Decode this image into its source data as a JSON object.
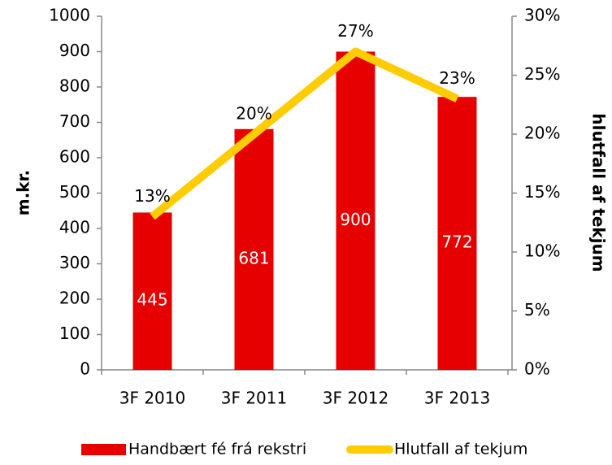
{
  "chart_data": {
    "type": "bar",
    "categories": [
      "3F 2010",
      "3F 2011",
      "3F 2012",
      "3F 2013"
    ],
    "series": [
      {
        "name": "Handbært fé frá rekstri",
        "type": "bar",
        "color": "#e60000",
        "values": [
          445,
          681,
          900,
          772
        ]
      },
      {
        "name": "Hlutfall af tekjum",
        "type": "line",
        "axis": "y2",
        "color": "#ffcc00",
        "values": [
          13,
          20,
          27,
          23
        ],
        "value_labels": [
          "13%",
          "20%",
          "27%",
          "23%"
        ]
      }
    ],
    "ylabel": "m.kr.",
    "y2label": "hlutfall af tekjum",
    "ylim": [
      0,
      1000
    ],
    "yticks": [
      0,
      100,
      200,
      300,
      400,
      500,
      600,
      700,
      800,
      900,
      1000
    ],
    "y2lim": [
      0,
      30
    ],
    "y2ticks": [
      {
        "value": 0,
        "label": "0%"
      },
      {
        "value": 5,
        "label": "5%"
      },
      {
        "value": 10,
        "label": "10%"
      },
      {
        "value": 15,
        "label": "15%"
      },
      {
        "value": 20,
        "label": "20%"
      },
      {
        "value": 25,
        "label": "25%"
      },
      {
        "value": 30,
        "label": "30%"
      }
    ],
    "legend": "bottom"
  }
}
